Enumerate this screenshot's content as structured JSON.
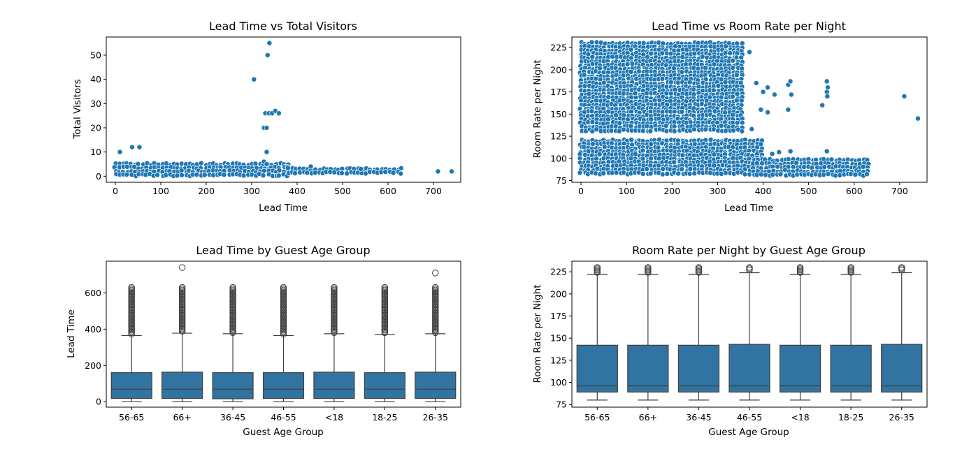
{
  "colors": {
    "marker": "#1f77b4",
    "box": "#3274a1",
    "edge": "#3f3f3f"
  },
  "chart_data": [
    {
      "type": "scatter",
      "title": "Lead Time vs Total Visitors",
      "xlabel": "Lead Time",
      "ylabel": "Total Visitors",
      "xlim": [
        -20,
        760
      ],
      "ylim": [
        -2.5,
        57.5
      ],
      "xticks": [
        0,
        100,
        200,
        300,
        400,
        500,
        600,
        700
      ],
      "yticks": [
        0,
        10,
        20,
        30,
        40,
        50
      ],
      "bands": [
        {
          "x_from": 0,
          "x_to": 380,
          "y_from": 0,
          "y_to": 5
        },
        {
          "x_from": 380,
          "x_to": 630,
          "y_from": 1,
          "y_to": 3
        }
      ],
      "points": [
        {
          "x": 10,
          "y": 10
        },
        {
          "x": 37,
          "y": 12
        },
        {
          "x": 53,
          "y": 12
        },
        {
          "x": 305,
          "y": 40
        },
        {
          "x": 335,
          "y": 50
        },
        {
          "x": 339,
          "y": 55
        },
        {
          "x": 327,
          "y": 20
        },
        {
          "x": 333,
          "y": 20
        },
        {
          "x": 330,
          "y": 26
        },
        {
          "x": 338,
          "y": 26
        },
        {
          "x": 345,
          "y": 26
        },
        {
          "x": 352,
          "y": 27
        },
        {
          "x": 360,
          "y": 26
        },
        {
          "x": 333,
          "y": 10
        },
        {
          "x": 327,
          "y": 6
        },
        {
          "x": 333,
          "y": 5
        },
        {
          "x": 710,
          "y": 2
        },
        {
          "x": 740,
          "y": 2
        },
        {
          "x": 540,
          "y": 3
        },
        {
          "x": 430,
          "y": 4
        }
      ]
    },
    {
      "type": "scatter",
      "title": "Lead Time vs Room Rate per Night",
      "xlabel": "Lead Time",
      "ylabel": "Room Rate per Night",
      "xlim": [
        -20,
        760
      ],
      "ylim": [
        73,
        237
      ],
      "xticks": [
        0,
        100,
        200,
        300,
        400,
        500,
        600,
        700
      ],
      "yticks": [
        75,
        100,
        125,
        150,
        175,
        200,
        225
      ],
      "bands": [
        {
          "x_from": 0,
          "x_to": 360,
          "y_from": 130,
          "y_to": 230
        },
        {
          "x_from": 0,
          "x_to": 400,
          "y_from": 80,
          "y_to": 120
        },
        {
          "x_from": 380,
          "x_to": 630,
          "y_from": 80,
          "y_to": 98
        }
      ],
      "points": [
        {
          "x": 370,
          "y": 220
        },
        {
          "x": 385,
          "y": 185
        },
        {
          "x": 400,
          "y": 175
        },
        {
          "x": 410,
          "y": 180
        },
        {
          "x": 425,
          "y": 172
        },
        {
          "x": 455,
          "y": 183
        },
        {
          "x": 460,
          "y": 187
        },
        {
          "x": 462,
          "y": 172
        },
        {
          "x": 455,
          "y": 155
        },
        {
          "x": 410,
          "y": 152
        },
        {
          "x": 395,
          "y": 155
        },
        {
          "x": 375,
          "y": 133
        },
        {
          "x": 530,
          "y": 160
        },
        {
          "x": 540,
          "y": 187
        },
        {
          "x": 542,
          "y": 180
        },
        {
          "x": 540,
          "y": 175
        },
        {
          "x": 541,
          "y": 170
        },
        {
          "x": 710,
          "y": 170
        },
        {
          "x": 740,
          "y": 145
        },
        {
          "x": 540,
          "y": 108
        },
        {
          "x": 460,
          "y": 108
        },
        {
          "x": 420,
          "y": 105
        },
        {
          "x": 435,
          "y": 107
        }
      ]
    },
    {
      "type": "box",
      "title": "Lead Time by Guest Age Group",
      "xlabel": "Guest Age Group",
      "ylabel": "Lead Time",
      "ylim": [
        -30,
        775
      ],
      "yticks": [
        0,
        200,
        400,
        600
      ],
      "categories": [
        "56-65",
        "66+",
        "36-45",
        "46-55",
        "<18",
        "18-25",
        "26-35"
      ],
      "boxes": [
        {
          "whislo": 0,
          "q1": 18,
          "med": 69,
          "q3": 160,
          "whishi": 365,
          "flier_from": 370,
          "flier_to": 630,
          "extra": []
        },
        {
          "whislo": 0,
          "q1": 18,
          "med": 69,
          "q3": 163,
          "whishi": 378,
          "flier_from": 383,
          "flier_to": 630,
          "extra": [
            740
          ]
        },
        {
          "whislo": 0,
          "q1": 16,
          "med": 69,
          "q3": 160,
          "whishi": 375,
          "flier_from": 380,
          "flier_to": 630,
          "extra": []
        },
        {
          "whislo": 0,
          "q1": 18,
          "med": 69,
          "q3": 160,
          "whishi": 365,
          "flier_from": 370,
          "flier_to": 630,
          "extra": []
        },
        {
          "whislo": 0,
          "q1": 18,
          "med": 69,
          "q3": 163,
          "whishi": 375,
          "flier_from": 380,
          "flier_to": 630,
          "extra": []
        },
        {
          "whislo": 0,
          "q1": 18,
          "med": 69,
          "q3": 160,
          "whishi": 370,
          "flier_from": 375,
          "flier_to": 630,
          "extra": []
        },
        {
          "whislo": 0,
          "q1": 18,
          "med": 69,
          "q3": 163,
          "whishi": 375,
          "flier_from": 380,
          "flier_to": 630,
          "extra": [
            710
          ]
        }
      ]
    },
    {
      "type": "box",
      "title": "Room Rate per Night by Guest Age Group",
      "xlabel": "Guest Age Group",
      "ylabel": "Room Rate per Night",
      "ylim": [
        72,
        237
      ],
      "yticks": [
        75,
        100,
        125,
        150,
        175,
        200,
        225
      ],
      "categories": [
        "56-65",
        "66+",
        "36-45",
        "46-55",
        "<18",
        "18-25",
        "26-35"
      ],
      "boxes": [
        {
          "whislo": 80,
          "q1": 89,
          "med": 96,
          "q3": 142,
          "whishi": 222,
          "flier_from": 223,
          "flier_to": 230,
          "extra": []
        },
        {
          "whislo": 80,
          "q1": 89,
          "med": 96,
          "q3": 142,
          "whishi": 222,
          "flier_from": 223,
          "flier_to": 230,
          "extra": []
        },
        {
          "whislo": 80,
          "q1": 89,
          "med": 96,
          "q3": 142,
          "whishi": 222,
          "flier_from": 223,
          "flier_to": 230,
          "extra": []
        },
        {
          "whislo": 80,
          "q1": 89,
          "med": 96,
          "q3": 143,
          "whishi": 224,
          "flier_from": 226,
          "flier_to": 230,
          "extra": []
        },
        {
          "whislo": 80,
          "q1": 89,
          "med": 96,
          "q3": 142,
          "whishi": 222,
          "flier_from": 223,
          "flier_to": 230,
          "extra": []
        },
        {
          "whislo": 80,
          "q1": 89,
          "med": 96,
          "q3": 142,
          "whishi": 222,
          "flier_from": 223,
          "flier_to": 230,
          "extra": []
        },
        {
          "whislo": 80,
          "q1": 89,
          "med": 96,
          "q3": 143,
          "whishi": 224,
          "flier_from": 226,
          "flier_to": 230,
          "extra": []
        }
      ]
    }
  ]
}
